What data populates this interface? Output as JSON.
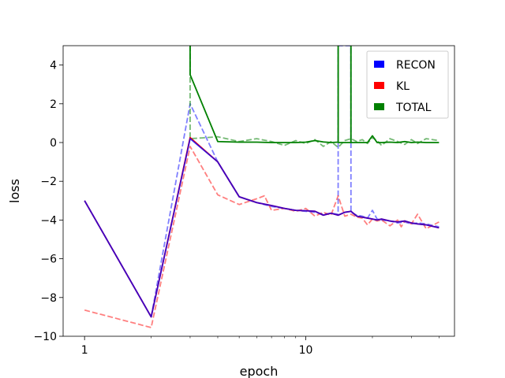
{
  "chart_data": {
    "type": "line",
    "title": "",
    "xlabel": "epoch",
    "ylabel": "loss",
    "xscale": "log",
    "xlim": [
      0.8,
      47
    ],
    "ylim": [
      -10,
      5
    ],
    "xticks": [
      {
        "value": 1,
        "label": "1"
      },
      {
        "value": 10,
        "label": "10"
      }
    ],
    "yticks": [
      -10,
      -8,
      -6,
      -4,
      -2,
      0,
      2,
      4
    ],
    "grid": false,
    "legend": {
      "position": "top-right",
      "entries": [
        "RECON",
        "KL",
        "TOTAL"
      ]
    },
    "series": [
      {
        "name": "RECON",
        "color": "#0000ff",
        "line_style": "dashed",
        "alpha": 0.5,
        "x": [
          1,
          2,
          3,
          4,
          5,
          6,
          7,
          8,
          9,
          10,
          11,
          12,
          13,
          14,
          14.01,
          15,
          15.99,
          16,
          17,
          18,
          19,
          20,
          21,
          22,
          24,
          26,
          28,
          30,
          32,
          35,
          40
        ],
        "y": [
          -3,
          -9,
          2.0,
          -1.0,
          -2.8,
          -3.1,
          -3.3,
          -3.4,
          -3.5,
          -3.55,
          -3.6,
          -3.7,
          -3.65,
          -3.7,
          5,
          5,
          5,
          -3.6,
          -3.75,
          -3.8,
          -3.9,
          -3.5,
          -3.95,
          -4.0,
          -4.05,
          -4.15,
          -4.1,
          -4.2,
          -4.15,
          -4.2,
          -4.35
        ]
      },
      {
        "name": "KL",
        "color": "#ff0000",
        "line_style": "dashed",
        "alpha": 0.5,
        "x": [
          1,
          2,
          3,
          4,
          5,
          6,
          6.5,
          7,
          8,
          9,
          10,
          11,
          12,
          13,
          14,
          15,
          16,
          17,
          18,
          19,
          20,
          21,
          22,
          24,
          26,
          27,
          28,
          30,
          32,
          35,
          40
        ],
        "y": [
          -8.65,
          -9.55,
          -0.2,
          -2.7,
          -3.2,
          -2.9,
          -2.75,
          -3.5,
          -3.4,
          -3.55,
          -3.4,
          -3.8,
          -3.6,
          -3.75,
          -2.75,
          -3.8,
          -3.7,
          -3.85,
          -3.9,
          -4.25,
          -3.95,
          -4.05,
          -4.0,
          -4.3,
          -4.0,
          -4.35,
          -4.05,
          -4.2,
          -3.7,
          -4.45,
          -4.1
        ]
      },
      {
        "name": "TOTAL",
        "color": "#008000",
        "line_style": "dashed",
        "alpha": 0.55,
        "x": [
          3,
          3,
          3.5,
          4,
          5,
          6,
          7,
          8,
          9,
          10,
          11,
          12,
          13,
          14,
          15,
          16,
          17,
          18,
          19,
          20,
          21,
          22,
          24,
          26,
          28,
          30,
          32,
          35,
          40
        ],
        "y": [
          5,
          0.2,
          0.25,
          0.3,
          0.05,
          0.2,
          0.05,
          -0.15,
          0.1,
          -0.05,
          0.15,
          -0.2,
          0.05,
          -0.25,
          0.1,
          0.2,
          0.05,
          0.15,
          -0.05,
          0.25,
          0.1,
          -0.15,
          0.2,
          0.05,
          -0.1,
          0.15,
          -0.05,
          0.2,
          0.1
        ]
      },
      {
        "name": "KL",
        "color": "#ff0000",
        "line_style": "solid",
        "alpha": 1,
        "x": [
          1,
          2,
          3,
          4,
          5,
          6,
          7,
          8,
          9,
          10,
          11,
          12,
          13,
          14,
          15,
          16,
          17,
          18,
          19,
          20,
          21,
          22,
          24,
          26,
          28,
          30,
          32,
          35,
          40
        ],
        "y": [
          -3,
          -9,
          0.25,
          -1.0,
          -2.8,
          -3.1,
          -3.25,
          -3.4,
          -3.5,
          -3.52,
          -3.55,
          -3.75,
          -3.65,
          -3.75,
          -3.6,
          -3.55,
          -3.8,
          -3.85,
          -3.9,
          -3.95,
          -4.0,
          -3.95,
          -4.05,
          -4.1,
          -4.05,
          -4.15,
          -4.2,
          -4.25,
          -4.4
        ]
      },
      {
        "name": "RECON",
        "color": "#0000ff",
        "line_style": "solid",
        "alpha": 0.75,
        "x": [
          1,
          2,
          3,
          4,
          5,
          6,
          7,
          8,
          9,
          10,
          11,
          12,
          13,
          14,
          15,
          16,
          17,
          18,
          19,
          20,
          21,
          22,
          24,
          26,
          28,
          30,
          32,
          35,
          40
        ],
        "y": [
          -3,
          -9,
          0.2,
          -1.0,
          -2.8,
          -3.1,
          -3.25,
          -3.4,
          -3.5,
          -3.52,
          -3.55,
          -3.75,
          -3.65,
          -3.75,
          -3.6,
          -3.55,
          -3.8,
          -3.85,
          -3.9,
          -3.95,
          -4.0,
          -3.95,
          -4.05,
          -4.1,
          -4.05,
          -4.15,
          -4.2,
          -4.25,
          -4.4
        ]
      },
      {
        "name": "TOTAL",
        "color": "#008000",
        "line_style": "solid",
        "alpha": 1,
        "x": [
          3,
          3,
          4,
          5,
          6,
          7,
          8,
          9,
          10,
          11,
          12,
          13,
          14,
          14,
          14.01,
          14.01,
          15.99,
          15.99,
          16,
          16,
          17,
          18,
          19,
          20,
          21,
          22,
          24,
          26,
          28,
          30,
          32,
          35,
          40
        ],
        "y": [
          5,
          3.5,
          0.05,
          0.02,
          0.02,
          0.0,
          0.0,
          0.0,
          0.02,
          0.1,
          0.03,
          0.0,
          0.02,
          5,
          5,
          0.0,
          0.0,
          5,
          5,
          0.0,
          0.0,
          0.0,
          0.0,
          0.35,
          0.0,
          0.0,
          0.02,
          0.0,
          0.05,
          0.0,
          0.02,
          0.0,
          0.0
        ]
      }
    ]
  }
}
